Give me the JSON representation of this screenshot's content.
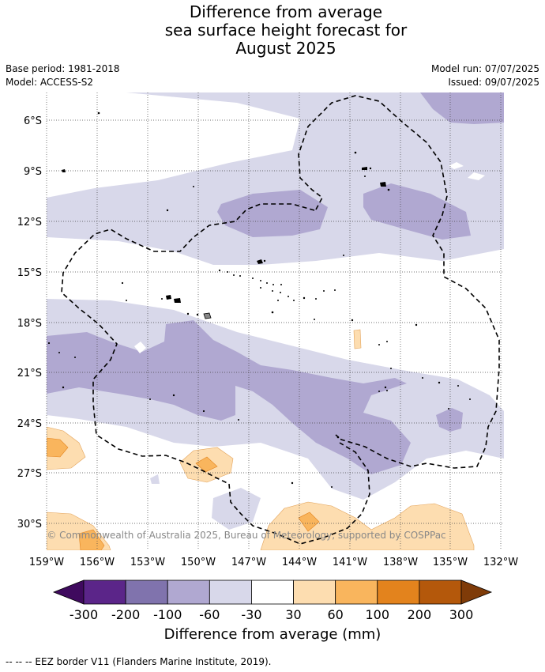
{
  "title": {
    "line1": "Difference from average",
    "line2": "sea surface height forecast for",
    "line3": "August 2025"
  },
  "meta": {
    "base_period": "Base period: 1981-2018",
    "model": "Model: ACCESS-S2",
    "model_run": "Model run: 07/07/2025",
    "issued": "Issued: 09/07/2025"
  },
  "map": {
    "lat_labels": [
      "6°S",
      "9°S",
      "12°S",
      "15°S",
      "18°S",
      "21°S",
      "24°S",
      "27°S",
      "30°S"
    ],
    "lon_labels": [
      "159°W",
      "156°W",
      "153°W",
      "150°W",
      "147°W",
      "144°W",
      "141°W",
      "138°W",
      "135°W",
      "132°W"
    ],
    "copyright": "© Commonwealth of Australia 2025, Bureau of Meteorology, supported by COSPPac"
  },
  "colorbar": {
    "ticks": [
      "-300",
      "-200",
      "-100",
      "-60",
      "-30",
      "30",
      "60",
      "100",
      "200",
      "300"
    ],
    "colors": [
      "#3f0a5e",
      "#5b2589",
      "#8073ad",
      "#b0a8d1",
      "#d8d8ea",
      "#ffffff",
      "#fdddb0",
      "#f9b55d",
      "#e3831d",
      "#b4580b",
      "#7f3b08"
    ],
    "label": "Difference from average (mm)"
  },
  "footnote": "--  --  -- EEZ border V11 (Flanders Marine Institute, 2019)."
}
